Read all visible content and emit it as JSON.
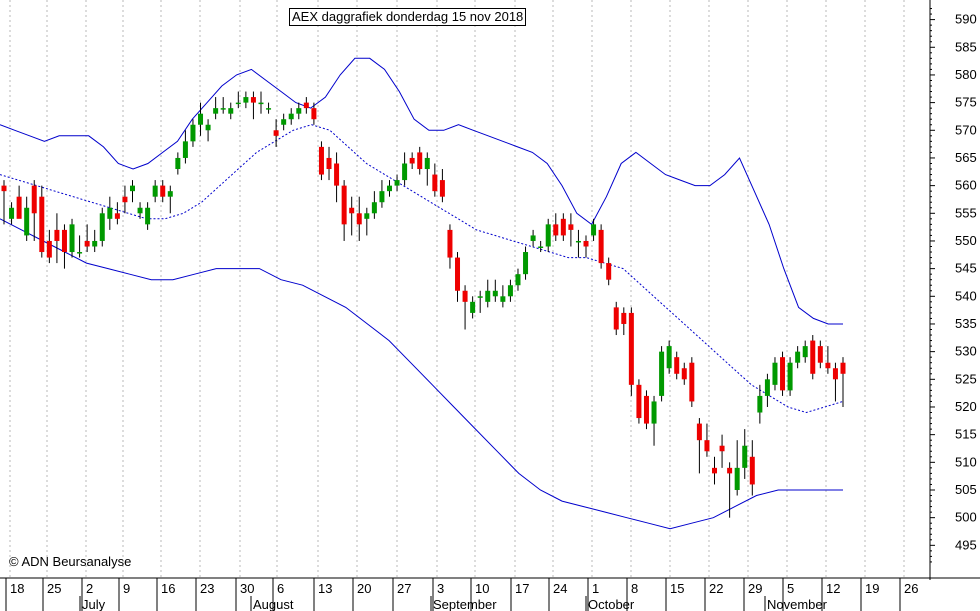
{
  "chart_data": {
    "type": "candlestick",
    "title": "AEX daggrafiek donderdag 15 nov 2018",
    "credit": "© ADN Beursanalyse",
    "ylim": [
      490,
      593
    ],
    "y_ticks": [
      495,
      500,
      505,
      510,
      515,
      520,
      525,
      530,
      535,
      540,
      545,
      550,
      555,
      560,
      565,
      570,
      575,
      580,
      585,
      590
    ],
    "x_day_labels": [
      "18",
      "25",
      "2",
      "9",
      "16",
      "23",
      "30",
      "6",
      "13",
      "20",
      "27",
      "3",
      "10",
      "17",
      "24",
      "1",
      "8",
      "15",
      "22",
      "29",
      "5",
      "12",
      "19",
      "26"
    ],
    "x_month_labels": [
      "July",
      "August",
      "September",
      "October",
      "November"
    ],
    "colors": {
      "up": "#009900",
      "down": "#ee0000",
      "band": "#0000cc",
      "grid": "#b8b8b8"
    },
    "grid": true,
    "series_candles": [
      {
        "o": 560,
        "h": 561,
        "l": 553,
        "c": 559
      },
      {
        "o": 554,
        "h": 557,
        "l": 553,
        "c": 556
      },
      {
        "o": 558,
        "h": 560,
        "l": 555,
        "c": 554
      },
      {
        "o": 551,
        "h": 558,
        "l": 550,
        "c": 556
      },
      {
        "o": 560,
        "h": 561,
        "l": 550,
        "c": 555
      },
      {
        "o": 558,
        "h": 560,
        "l": 547,
        "c": 548
      },
      {
        "o": 550,
        "h": 552,
        "l": 546,
        "c": 547
      },
      {
        "o": 552,
        "h": 555,
        "l": 546,
        "c": 550
      },
      {
        "o": 552,
        "h": 553,
        "l": 545,
        "c": 548
      },
      {
        "o": 548,
        "h": 554,
        "l": 547,
        "c": 553
      },
      {
        "o": 548,
        "h": 551,
        "l": 547,
        "c": 548
      },
      {
        "o": 550,
        "h": 553,
        "l": 548,
        "c": 549
      },
      {
        "o": 549,
        "h": 552,
        "l": 548,
        "c": 550
      },
      {
        "o": 550,
        "h": 556,
        "l": 549,
        "c": 555
      },
      {
        "o": 554,
        "h": 558,
        "l": 552,
        "c": 556
      },
      {
        "o": 555,
        "h": 557,
        "l": 553,
        "c": 554
      },
      {
        "o": 558,
        "h": 560,
        "l": 555,
        "c": 557
      },
      {
        "o": 559,
        "h": 561,
        "l": 557,
        "c": 560
      },
      {
        "o": 555,
        "h": 557,
        "l": 554,
        "c": 556
      },
      {
        "o": 553,
        "h": 557,
        "l": 552,
        "c": 556
      },
      {
        "o": 558,
        "h": 561,
        "l": 557,
        "c": 560
      },
      {
        "o": 560,
        "h": 561,
        "l": 557,
        "c": 558
      },
      {
        "o": 558,
        "h": 560,
        "l": 555,
        "c": 559
      },
      {
        "o": 563,
        "h": 566,
        "l": 562,
        "c": 565
      },
      {
        "o": 565,
        "h": 570,
        "l": 564,
        "c": 568
      },
      {
        "o": 568,
        "h": 572,
        "l": 567,
        "c": 571
      },
      {
        "o": 571,
        "h": 575,
        "l": 569,
        "c": 573
      },
      {
        "o": 570,
        "h": 572,
        "l": 568,
        "c": 571
      },
      {
        "o": 573,
        "h": 576,
        "l": 572,
        "c": 574
      },
      {
        "o": 574,
        "h": 576,
        "l": 573,
        "c": 574
      },
      {
        "o": 573,
        "h": 575,
        "l": 572,
        "c": 574
      },
      {
        "o": 575,
        "h": 577,
        "l": 574,
        "c": 575
      },
      {
        "o": 575,
        "h": 577,
        "l": 574,
        "c": 576
      },
      {
        "o": 576,
        "h": 577,
        "l": 572,
        "c": 575
      },
      {
        "o": 575,
        "h": 577,
        "l": 573,
        "c": 575
      },
      {
        "o": 574,
        "h": 575,
        "l": 573,
        "c": 574
      },
      {
        "o": 570,
        "h": 572,
        "l": 567,
        "c": 569
      },
      {
        "o": 571,
        "h": 573,
        "l": 570,
        "c": 572
      },
      {
        "o": 572,
        "h": 574,
        "l": 571,
        "c": 573
      },
      {
        "o": 573,
        "h": 575,
        "l": 572,
        "c": 574
      },
      {
        "o": 575,
        "h": 576,
        "l": 573,
        "c": 574
      },
      {
        "o": 574,
        "h": 575,
        "l": 571,
        "c": 572
      },
      {
        "o": 567,
        "h": 568,
        "l": 561,
        "c": 562
      },
      {
        "o": 565,
        "h": 567,
        "l": 561,
        "c": 563
      },
      {
        "o": 564,
        "h": 566,
        "l": 557,
        "c": 560
      },
      {
        "o": 560,
        "h": 561,
        "l": 550,
        "c": 553
      },
      {
        "o": 556,
        "h": 558,
        "l": 551,
        "c": 555
      },
      {
        "o": 555,
        "h": 558,
        "l": 550,
        "c": 553
      },
      {
        "o": 554,
        "h": 556,
        "l": 551,
        "c": 555
      },
      {
        "o": 555,
        "h": 559,
        "l": 554,
        "c": 557
      },
      {
        "o": 557,
        "h": 561,
        "l": 556,
        "c": 559
      },
      {
        "o": 559,
        "h": 561,
        "l": 558,
        "c": 560
      },
      {
        "o": 560,
        "h": 562,
        "l": 559,
        "c": 561
      },
      {
        "o": 561,
        "h": 566,
        "l": 560,
        "c": 564
      },
      {
        "o": 565,
        "h": 566,
        "l": 563,
        "c": 564
      },
      {
        "o": 566,
        "h": 567,
        "l": 562,
        "c": 563
      },
      {
        "o": 563,
        "h": 566,
        "l": 560,
        "c": 565
      },
      {
        "o": 562,
        "h": 564,
        "l": 558,
        "c": 559
      },
      {
        "o": 561,
        "h": 563,
        "l": 557,
        "c": 558
      },
      {
        "o": 552,
        "h": 553,
        "l": 545,
        "c": 547
      },
      {
        "o": 547,
        "h": 548,
        "l": 539,
        "c": 541
      },
      {
        "o": 541,
        "h": 542,
        "l": 534,
        "c": 539
      },
      {
        "o": 537,
        "h": 540,
        "l": 536,
        "c": 539
      },
      {
        "o": 540,
        "h": 541,
        "l": 537,
        "c": 540
      },
      {
        "o": 539,
        "h": 543,
        "l": 538,
        "c": 541
      },
      {
        "o": 540,
        "h": 543,
        "l": 539,
        "c": 541
      },
      {
        "o": 539,
        "h": 542,
        "l": 538,
        "c": 540
      },
      {
        "o": 540,
        "h": 543,
        "l": 539,
        "c": 542
      },
      {
        "o": 542,
        "h": 545,
        "l": 541,
        "c": 544
      },
      {
        "o": 544,
        "h": 549,
        "l": 543,
        "c": 548
      },
      {
        "o": 550,
        "h": 552,
        "l": 549,
        "c": 551
      },
      {
        "o": 549,
        "h": 550,
        "l": 548,
        "c": 549
      },
      {
        "o": 549,
        "h": 554,
        "l": 548,
        "c": 553
      },
      {
        "o": 553,
        "h": 555,
        "l": 550,
        "c": 551
      },
      {
        "o": 554,
        "h": 555,
        "l": 550,
        "c": 551
      },
      {
        "o": 553,
        "h": 555,
        "l": 549,
        "c": 552
      },
      {
        "o": 550,
        "h": 552,
        "l": 547,
        "c": 550
      },
      {
        "o": 550,
        "h": 551,
        "l": 547,
        "c": 549
      },
      {
        "o": 551,
        "h": 554,
        "l": 550,
        "c": 553
      },
      {
        "o": 552,
        "h": 553,
        "l": 545,
        "c": 546
      },
      {
        "o": 546,
        "h": 547,
        "l": 542,
        "c": 543
      },
      {
        "o": 538,
        "h": 539,
        "l": 533,
        "c": 534
      },
      {
        "o": 537,
        "h": 538,
        "l": 533,
        "c": 535
      },
      {
        "o": 537,
        "h": 538,
        "l": 522,
        "c": 524
      },
      {
        "o": 524,
        "h": 525,
        "l": 517,
        "c": 518
      },
      {
        "o": 522,
        "h": 523,
        "l": 516,
        "c": 517
      },
      {
        "o": 517,
        "h": 522,
        "l": 513,
        "c": 521
      },
      {
        "o": 522,
        "h": 531,
        "l": 521,
        "c": 530
      },
      {
        "o": 527,
        "h": 532,
        "l": 526,
        "c": 531
      },
      {
        "o": 529,
        "h": 530,
        "l": 525,
        "c": 526
      },
      {
        "o": 527,
        "h": 528,
        "l": 524,
        "c": 525
      },
      {
        "o": 528,
        "h": 529,
        "l": 520,
        "c": 521
      },
      {
        "o": 517,
        "h": 518,
        "l": 508,
        "c": 514
      },
      {
        "o": 514,
        "h": 517,
        "l": 511,
        "c": 512
      },
      {
        "o": 509,
        "h": 511,
        "l": 506,
        "c": 508
      },
      {
        "o": 513,
        "h": 515,
        "l": 509,
        "c": 512
      },
      {
        "o": 509,
        "h": 510,
        "l": 500,
        "c": 508
      },
      {
        "o": 505,
        "h": 514,
        "l": 504,
        "c": 509
      },
      {
        "o": 509,
        "h": 516,
        "l": 507,
        "c": 513
      },
      {
        "o": 511,
        "h": 514,
        "l": 504,
        "c": 506
      },
      {
        "o": 519,
        "h": 524,
        "l": 517,
        "c": 522
      },
      {
        "o": 522,
        "h": 526,
        "l": 520,
        "c": 525
      },
      {
        "o": 524,
        "h": 529,
        "l": 523,
        "c": 528
      },
      {
        "o": 529,
        "h": 530,
        "l": 522,
        "c": 523
      },
      {
        "o": 523,
        "h": 529,
        "l": 522,
        "c": 528
      },
      {
        "o": 528,
        "h": 531,
        "l": 527,
        "c": 530
      },
      {
        "o": 529,
        "h": 532,
        "l": 528,
        "c": 531
      },
      {
        "o": 532,
        "h": 533,
        "l": 525,
        "c": 526
      },
      {
        "o": 531,
        "h": 532,
        "l": 527,
        "c": 528
      },
      {
        "o": 528,
        "h": 531,
        "l": 526,
        "c": 527
      },
      {
        "o": 527,
        "h": 528,
        "l": 521,
        "c": 525
      },
      {
        "o": 528,
        "h": 529,
        "l": 520,
        "c": 526
      }
    ],
    "series_upper_band": [
      571,
      570,
      569,
      568,
      569,
      569,
      569,
      567,
      564,
      563,
      564,
      566,
      568,
      572,
      575,
      578,
      580,
      581,
      579,
      577,
      575,
      574,
      576,
      580,
      583,
      583,
      581,
      577,
      572,
      570,
      570,
      571,
      570,
      569,
      568,
      567,
      566,
      564,
      560,
      555,
      553,
      558,
      564,
      566,
      564,
      562,
      561,
      560,
      560,
      562,
      565,
      559,
      553,
      545,
      538,
      536,
      535,
      535
    ],
    "series_middle_band": [
      562,
      561,
      560,
      559,
      558,
      557,
      556,
      555,
      554,
      554,
      555,
      557,
      560,
      563,
      566,
      568,
      570,
      571,
      570,
      567,
      564,
      562,
      560,
      558,
      556,
      554,
      552,
      551,
      550,
      549,
      548,
      547,
      547,
      546,
      545,
      542,
      539,
      536,
      533,
      530,
      527,
      524,
      522,
      520,
      519,
      520,
      521
    ],
    "series_lower_band": [
      554,
      552,
      550,
      548,
      546,
      545,
      544,
      543,
      543,
      544,
      545,
      545,
      545,
      543,
      542,
      540,
      538,
      535,
      532,
      528,
      524,
      520,
      516,
      512,
      508,
      505,
      503,
      502,
      501,
      500,
      499,
      498,
      499,
      500,
      502,
      504,
      505,
      505,
      505,
      505
    ],
    "series_labels_none": ""
  }
}
